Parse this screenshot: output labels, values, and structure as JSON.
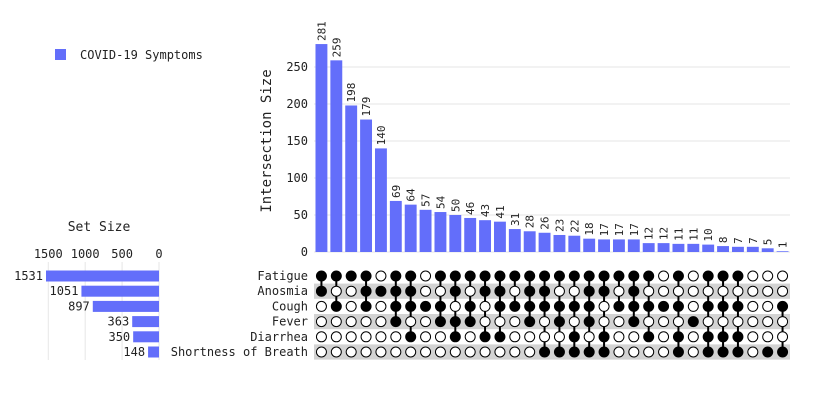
{
  "chart_data": {
    "type": "bar",
    "subtype": "upset",
    "legend": {
      "label": "COVID-19 Symptoms",
      "color": "#636efa",
      "placement": "top-left"
    },
    "intersection_axis": {
      "label": "Intersection Size",
      "ylim": [
        0,
        300
      ],
      "ticks": [
        0,
        50,
        100,
        150,
        200,
        250
      ]
    },
    "set_size_axis": {
      "title": "Set Size",
      "xlim": [
        1600,
        0
      ],
      "ticks": [
        1500,
        1000,
        500,
        0
      ]
    },
    "sets": [
      {
        "name": "Fatigue",
        "size": 1531
      },
      {
        "name": "Anosmia",
        "size": 1051
      },
      {
        "name": "Cough",
        "size": 897
      },
      {
        "name": "Fever",
        "size": 363
      },
      {
        "name": "Diarrhea",
        "size": 350
      },
      {
        "name": "Shortness of Breath",
        "size": 148
      }
    ],
    "intersections": [
      {
        "value": 281,
        "members": [
          1,
          1,
          0,
          0,
          0,
          0
        ]
      },
      {
        "value": 259,
        "members": [
          1,
          0,
          1,
          0,
          0,
          0
        ]
      },
      {
        "value": 198,
        "members": [
          1,
          0,
          0,
          0,
          0,
          0
        ]
      },
      {
        "value": 179,
        "members": [
          1,
          1,
          1,
          0,
          0,
          0
        ]
      },
      {
        "value": 140,
        "members": [
          0,
          1,
          0,
          0,
          0,
          0
        ]
      },
      {
        "value": 69,
        "members": [
          1,
          1,
          1,
          1,
          0,
          0
        ]
      },
      {
        "value": 64,
        "members": [
          1,
          1,
          1,
          0,
          1,
          0
        ]
      },
      {
        "value": 57,
        "members": [
          0,
          0,
          1,
          0,
          0,
          0
        ]
      },
      {
        "value": 54,
        "members": [
          1,
          0,
          1,
          1,
          0,
          0
        ]
      },
      {
        "value": 50,
        "members": [
          1,
          1,
          0,
          1,
          1,
          0
        ]
      },
      {
        "value": 46,
        "members": [
          1,
          0,
          1,
          1,
          0,
          0
        ]
      },
      {
        "value": 43,
        "members": [
          1,
          1,
          0,
          0,
          1,
          0
        ]
      },
      {
        "value": 41,
        "members": [
          1,
          1,
          1,
          0,
          1,
          0
        ]
      },
      {
        "value": 31,
        "members": [
          1,
          0,
          1,
          0,
          0,
          0
        ]
      },
      {
        "value": 28,
        "members": [
          1,
          1,
          1,
          1,
          0,
          0
        ]
      },
      {
        "value": 26,
        "members": [
          1,
          1,
          1,
          0,
          0,
          1
        ]
      },
      {
        "value": 23,
        "members": [
          1,
          0,
          1,
          1,
          0,
          1
        ]
      },
      {
        "value": 22,
        "members": [
          1,
          0,
          1,
          0,
          1,
          1
        ]
      },
      {
        "value": 18,
        "members": [
          1,
          1,
          1,
          1,
          0,
          1
        ]
      },
      {
        "value": 17,
        "members": [
          1,
          1,
          0,
          0,
          1,
          1
        ]
      },
      {
        "value": 17,
        "members": [
          1,
          0,
          1,
          0,
          0,
          0
        ]
      },
      {
        "value": 17,
        "members": [
          1,
          1,
          1,
          1,
          0,
          0
        ]
      },
      {
        "value": 12,
        "members": [
          1,
          0,
          1,
          0,
          1,
          0
        ]
      },
      {
        "value": 12,
        "members": [
          0,
          0,
          1,
          0,
          0,
          0
        ]
      },
      {
        "value": 11,
        "members": [
          1,
          0,
          1,
          0,
          1,
          1
        ]
      },
      {
        "value": 11,
        "members": [
          0,
          0,
          0,
          1,
          0,
          0
        ]
      },
      {
        "value": 10,
        "members": [
          1,
          0,
          1,
          0,
          1,
          1
        ]
      },
      {
        "value": 8,
        "members": [
          1,
          0,
          1,
          0,
          1,
          1
        ]
      },
      {
        "value": 7,
        "members": [
          1,
          0,
          1,
          0,
          1,
          1
        ]
      },
      {
        "value": 7,
        "members": [
          0,
          0,
          0,
          0,
          0,
          0
        ]
      },
      {
        "value": 5,
        "members": [
          0,
          0,
          0,
          0,
          0,
          1
        ]
      },
      {
        "value": 1,
        "members": [
          0,
          0,
          1,
          0,
          0,
          1
        ]
      }
    ],
    "colors": {
      "bar": "#636efa",
      "dot_filled": "#000000",
      "dot_empty": "#ffffff",
      "band": "#d3d3d3",
      "grid": "#e6e6e6"
    }
  }
}
